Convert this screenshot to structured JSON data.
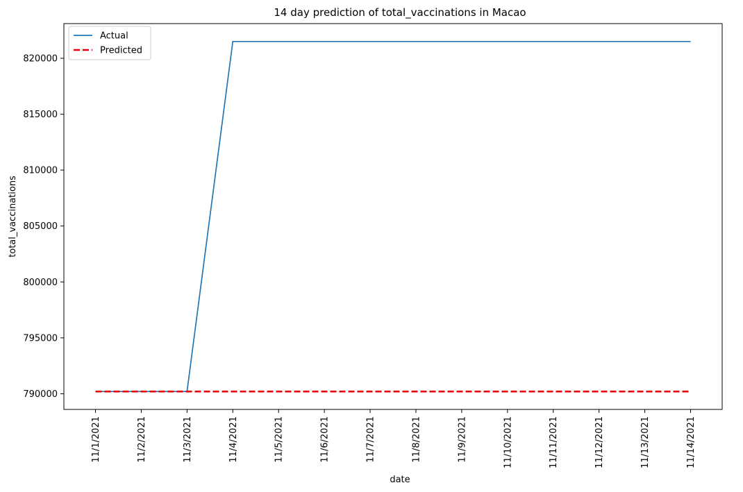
{
  "chart_data": {
    "type": "line",
    "title": "14 day prediction of total_vaccinations in Macao",
    "xlabel": "date",
    "ylabel": "total_vaccinations",
    "categories": [
      "11/1/2021",
      "11/2/2021",
      "11/3/2021",
      "11/4/2021",
      "11/5/2021",
      "11/6/2021",
      "11/7/2021",
      "11/8/2021",
      "11/9/2021",
      "11/10/2021",
      "11/11/2021",
      "11/12/2021",
      "11/13/2021",
      "11/14/2021"
    ],
    "series": [
      {
        "name": "Actual",
        "color": "#1f77b4",
        "style": "solid",
        "values": [
          790200,
          790200,
          790200,
          821500,
          821500,
          821500,
          821500,
          821500,
          821500,
          821500,
          821500,
          821500,
          821500,
          821500
        ]
      },
      {
        "name": "Predicted",
        "color": "#e8000b",
        "style": "dashed",
        "values": [
          790200,
          790200,
          790200,
          790200,
          790200,
          790200,
          790200,
          790200,
          790200,
          790200,
          790200,
          790200,
          790200,
          790200
        ]
      }
    ],
    "yticks": [
      790000,
      795000,
      800000,
      805000,
      810000,
      815000,
      820000
    ],
    "ylim": [
      788600,
      823100
    ],
    "legend": "top-left",
    "grid": false
  }
}
